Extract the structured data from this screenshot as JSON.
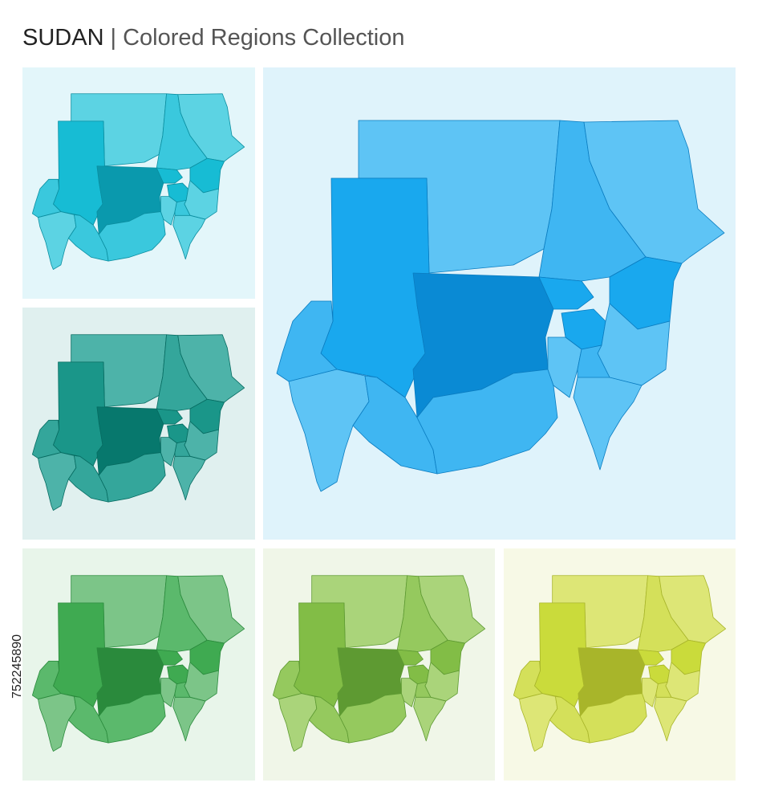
{
  "header": {
    "title": "SUDAN",
    "separator": "|",
    "subtitle": "Colored Regions Collection"
  },
  "stock_id": "752245890"
}
